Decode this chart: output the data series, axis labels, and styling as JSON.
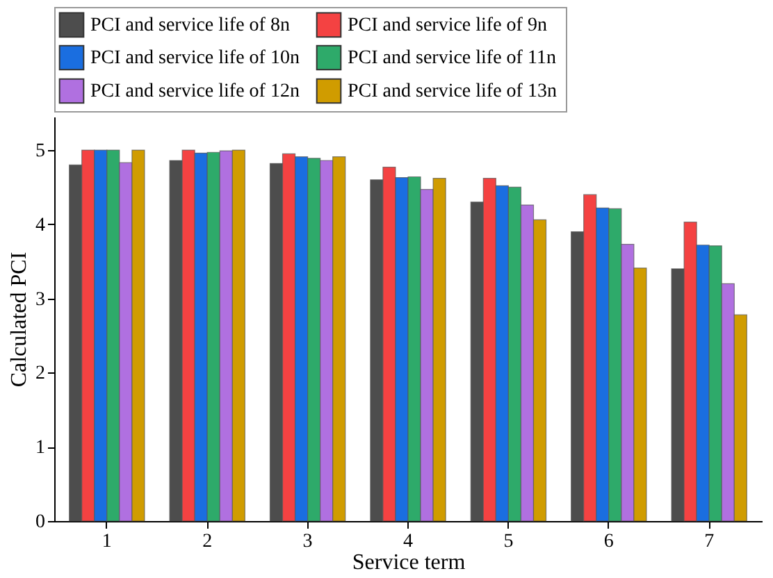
{
  "chart_data": {
    "type": "bar",
    "xlabel": "Service term",
    "ylabel": "Calculated PCI",
    "categories": [
      "1",
      "2",
      "3",
      "4",
      "5",
      "6",
      "7"
    ],
    "series": [
      {
        "name": "PCI and service life  of 8n",
        "color": "#4d4d4d",
        "values": [
          4.8,
          4.86,
          4.82,
          4.6,
          4.3,
          3.9,
          3.4
        ]
      },
      {
        "name": "PCI and service life  of 9n",
        "color": "#f44242",
        "values": [
          5.0,
          5.0,
          4.95,
          4.77,
          4.62,
          4.4,
          4.03
        ]
      },
      {
        "name": "PCI and service life  of 10n",
        "color": "#1a6ee0",
        "values": [
          5.0,
          4.96,
          4.91,
          4.63,
          4.52,
          4.22,
          3.72
        ]
      },
      {
        "name": "PCI and service life  of 11n",
        "color": "#2eaa6a",
        "values": [
          5.0,
          4.97,
          4.89,
          4.64,
          4.5,
          4.21,
          3.71
        ]
      },
      {
        "name": "PCI and service life  of 12n",
        "color": "#b070e0",
        "values": [
          4.83,
          4.99,
          4.86,
          4.47,
          4.26,
          3.73,
          3.2
        ]
      },
      {
        "name": "PCI and service life  of 13n",
        "color": "#d09c00",
        "values": [
          5.0,
          5.0,
          4.91,
          4.62,
          4.06,
          3.41,
          2.78
        ]
      }
    ],
    "ylim": [
      0,
      5.45
    ],
    "yticks": [
      0,
      1,
      2,
      3,
      4,
      5
    ],
    "grid": false,
    "legend": "top"
  }
}
